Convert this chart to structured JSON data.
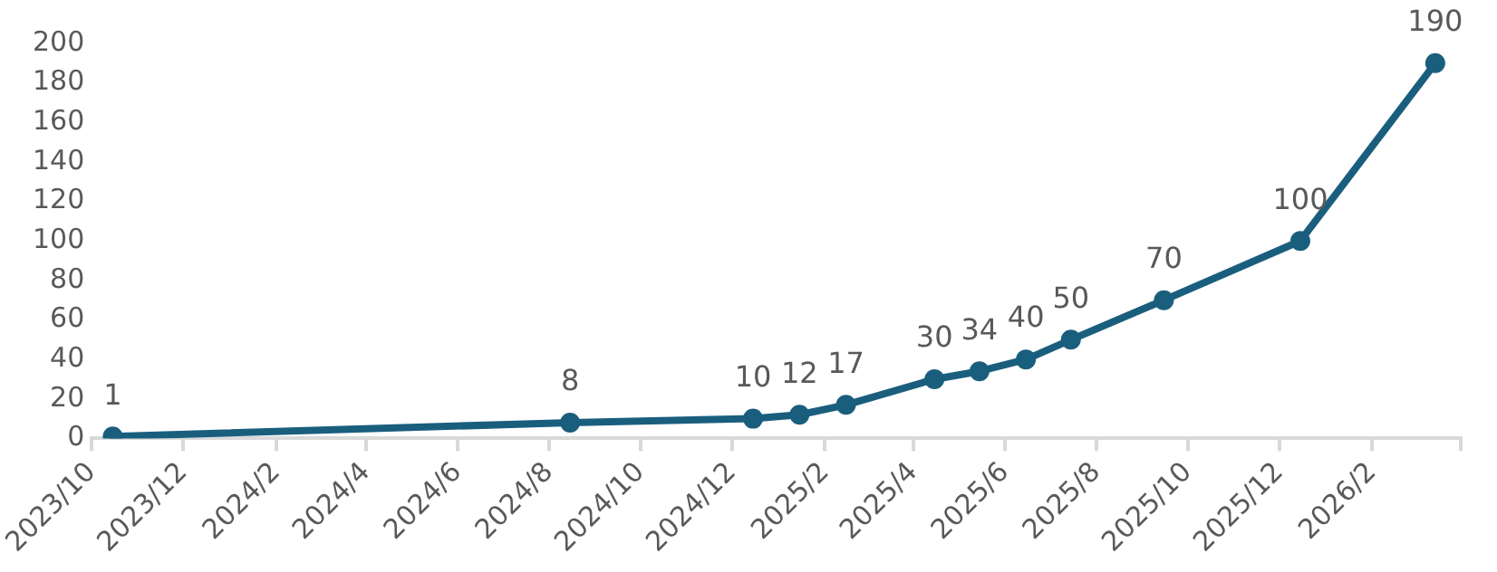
{
  "chart_data": {
    "type": "line",
    "x": [
      "2023-10-15",
      "2024-08-15",
      "2024-12-15",
      "2025-01-15",
      "2025-02-15",
      "2025-04-15",
      "2025-05-15",
      "2025-06-15",
      "2025-07-15",
      "2025-09-15",
      "2025-12-15",
      "2026-03-15"
    ],
    "series": [
      {
        "color": "#1a5e7e",
        "values": [
          1,
          8,
          10,
          12,
          17,
          30,
          34,
          40,
          50,
          70,
          100,
          190
        ]
      }
    ],
    "xlim": [
      "2023-10",
      "2026-04"
    ],
    "xticks": [
      {
        "value": "2023-10",
        "label": "2023/10"
      },
      {
        "value": "2023-12",
        "label": "2023/12"
      },
      {
        "value": "2024-02",
        "label": "2024/2"
      },
      {
        "value": "2024-04",
        "label": "2024/4"
      },
      {
        "value": "2024-06",
        "label": "2024/6"
      },
      {
        "value": "2024-08",
        "label": "2024/8"
      },
      {
        "value": "2024-10",
        "label": "2024/10"
      },
      {
        "value": "2024-12",
        "label": "2024/12"
      },
      {
        "value": "2025-02",
        "label": "2025/2"
      },
      {
        "value": "2025-04",
        "label": "2025/4"
      },
      {
        "value": "2025-06",
        "label": "2025/6"
      },
      {
        "value": "2025-08",
        "label": "2025/8"
      },
      {
        "value": "2025-10",
        "label": "2025/10"
      },
      {
        "value": "2025-12",
        "label": "2025/12"
      },
      {
        "value": "2026-02",
        "label": "2026/2"
      },
      {
        "value": "2026-04",
        "label": null
      }
    ],
    "ylim": [
      0,
      200
    ],
    "yticks": [
      0,
      20,
      40,
      60,
      80,
      100,
      120,
      140,
      160,
      180,
      200
    ],
    "grid": false,
    "legend": false,
    "marker": "circle",
    "line_style": "solid",
    "data_labels": true
  }
}
